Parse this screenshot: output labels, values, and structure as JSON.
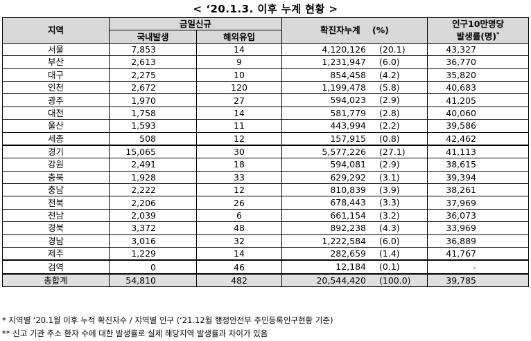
{
  "title": "< ‘20.1.3. 이후 누계 현황 >",
  "headers": {
    "region": "지역",
    "new_today": "금일신규",
    "domestic": "국내발생",
    "overseas": "해외유입",
    "cumulative": "확진자누계",
    "percent": "(%)",
    "rate_line1": "인구10만명당",
    "rate_line2": "발생률(명)",
    "rate_mark": "*"
  },
  "rows": [
    {
      "region": "서울",
      "domestic": "7,853",
      "overseas": "14",
      "cumulative": "4,120,126",
      "percent": "(20.1)",
      "rate": "43,327"
    },
    {
      "region": "부산",
      "domestic": "2,613",
      "overseas": "9",
      "cumulative": "1,231,947",
      "percent": "(6.0)",
      "rate": "36,770"
    },
    {
      "region": "대구",
      "domestic": "2,275",
      "overseas": "10",
      "cumulative": "854,458",
      "percent": "(4.2)",
      "rate": "35,820"
    },
    {
      "region": "인천",
      "domestic": "2,672",
      "overseas": "120",
      "cumulative": "1,199,478",
      "percent": "(5.8)",
      "rate": "40,683"
    },
    {
      "region": "광주",
      "domestic": "1,970",
      "overseas": "27",
      "cumulative": "594,023",
      "percent": "(2.9)",
      "rate": "41,205"
    },
    {
      "region": "대전",
      "domestic": "1,758",
      "overseas": "14",
      "cumulative": "581,779",
      "percent": "(2.8)",
      "rate": "40,060"
    },
    {
      "region": "울산",
      "domestic": "1,593",
      "overseas": "11",
      "cumulative": "443,994",
      "percent": "(2.2)",
      "rate": "39,586"
    },
    {
      "region": "세종",
      "domestic": "508",
      "overseas": "12",
      "cumulative": "157,915",
      "percent": "(0.8)",
      "rate": "42,462"
    },
    {
      "region": "경기",
      "domestic": "15,065",
      "overseas": "30",
      "cumulative": "5,577,226",
      "percent": "(27.1)",
      "rate": "41,113"
    },
    {
      "region": "강원",
      "domestic": "2,491",
      "overseas": "18",
      "cumulative": "594,081",
      "percent": "(2.9)",
      "rate": "38,615"
    },
    {
      "region": "충북",
      "domestic": "1,928",
      "overseas": "33",
      "cumulative": "629,292",
      "percent": "(3.1)",
      "rate": "39,394"
    },
    {
      "region": "충남",
      "domestic": "2,222",
      "overseas": "12",
      "cumulative": "810,839",
      "percent": "(3.9)",
      "rate": "38,261"
    },
    {
      "region": "전북",
      "domestic": "2,206",
      "overseas": "26",
      "cumulative": "678,443",
      "percent": "(3.3)",
      "rate": "37,969"
    },
    {
      "region": "전남",
      "domestic": "2,039",
      "overseas": "6",
      "cumulative": "661,154",
      "percent": "(3.2)",
      "rate": "36,073"
    },
    {
      "region": "경북",
      "domestic": "3,372",
      "overseas": "48",
      "cumulative": "892,238",
      "percent": "(4.3)",
      "rate": "33,969"
    },
    {
      "region": "경남",
      "domestic": "3,016",
      "overseas": "32",
      "cumulative": "1,222,584",
      "percent": "(6.0)",
      "rate": "36,889"
    },
    {
      "region": "제주",
      "domestic": "1,229",
      "overseas": "14",
      "cumulative": "282,659",
      "percent": "(1.4)",
      "rate": "41,767"
    },
    {
      "region": "검역",
      "domestic": "0",
      "overseas": "46",
      "cumulative": "12,184",
      "percent": "(0.1)",
      "rate": "-"
    },
    {
      "region": "총합계",
      "domestic": "54,810",
      "overseas": "482",
      "cumulative": "20,544,420",
      "percent": "(100.0)",
      "rate": "39,785"
    }
  ],
  "footnotes": [
    "* 지역별 ‘20.1월 이후 누적 확진자수 / 지역별 인구 (‘21.12월 행정안전부 주민등록인구현황 기준)",
    "** 신고 기관 주소 환자 수에 대한 발생률로 실제 해당지역 발생률과 차이가 있음"
  ]
}
